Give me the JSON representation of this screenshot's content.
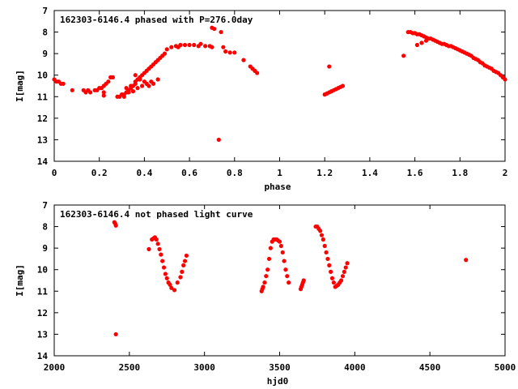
{
  "chart_data": [
    {
      "type": "scatter",
      "title": "162303-6146.4 phased with P=276.0day",
      "xlabel": "phase",
      "ylabel": "I[mag]",
      "xlim": [
        0,
        2
      ],
      "ylim": [
        14,
        7
      ],
      "y_inverted": true,
      "x_ticks": [
        "0",
        "0.2",
        "0.4",
        "0.6",
        "0.8",
        "1",
        "1.2",
        "1.4",
        "1.6",
        "1.8",
        "2"
      ],
      "x_tick_values": [
        0,
        0.2,
        0.4,
        0.6,
        0.8,
        1.0,
        1.2,
        1.4,
        1.6,
        1.8,
        2.0
      ],
      "y_ticks": [
        "7",
        "8",
        "9",
        "10",
        "11",
        "12",
        "13",
        "14"
      ],
      "y_tick_values": [
        7,
        8,
        9,
        10,
        11,
        12,
        13,
        14
      ],
      "grid": false,
      "marker_color": "#ff0000",
      "series": [
        {
          "x": [
            0.0,
            0.01,
            0.02,
            0.03,
            0.04,
            0.08,
            0.13,
            0.14,
            0.15,
            0.16,
            0.18,
            0.19,
            0.2,
            0.21,
            0.22,
            0.22,
            0.23,
            0.24,
            0.25,
            0.26,
            0.28,
            0.29,
            0.3,
            0.31,
            0.32,
            0.33,
            0.34,
            0.35,
            0.36,
            0.37,
            0.38,
            0.39,
            0.4,
            0.41,
            0.42,
            0.43,
            0.44,
            0.45,
            0.46,
            0.47,
            0.48,
            0.49,
            0.5,
            0.52,
            0.54,
            0.56,
            0.58,
            0.6,
            0.62,
            0.64,
            0.65,
            0.67,
            0.69,
            0.7,
            0.71,
            0.74,
            0.75,
            0.76,
            0.78,
            0.8,
            0.84,
            0.87,
            0.88,
            0.89,
            0.9,
            1.2,
            1.21,
            1.22,
            1.23,
            1.24,
            1.25,
            1.26,
            1.27,
            1.28,
            1.55,
            1.57,
            1.58,
            1.59,
            1.6,
            1.61,
            1.62,
            1.63,
            1.64,
            1.65,
            1.66,
            1.67,
            1.68,
            1.69,
            1.7,
            1.71,
            1.72,
            1.73,
            1.74,
            1.75,
            1.76,
            1.77,
            1.78,
            1.79,
            1.8,
            1.81,
            1.82,
            1.83,
            1.84,
            1.85,
            1.86,
            1.87,
            1.88,
            1.89,
            1.9,
            1.91,
            1.92,
            1.93,
            1.94,
            1.95,
            1.96,
            1.97,
            1.98,
            1.99,
            2.0,
            0.36,
            0.38,
            0.4,
            0.42,
            0.32,
            0.34,
            0.36,
            0.22,
            0.44,
            0.46,
            0.3,
            0.31,
            0.33,
            0.35,
            0.37,
            0.39,
            0.41,
            0.43,
            1.61,
            1.63,
            1.65
          ],
          "y": [
            10.2,
            10.3,
            10.3,
            10.4,
            10.4,
            10.7,
            10.7,
            10.8,
            10.7,
            10.8,
            10.7,
            10.7,
            10.6,
            10.6,
            10.5,
            10.8,
            10.4,
            10.3,
            10.1,
            10.1,
            11.0,
            11.0,
            10.9,
            10.9,
            10.8,
            10.7,
            10.6,
            10.5,
            10.3,
            10.2,
            10.1,
            10.0,
            9.9,
            9.8,
            9.7,
            9.6,
            9.5,
            9.4,
            9.3,
            9.2,
            9.1,
            9.0,
            8.8,
            8.7,
            8.65,
            8.6,
            8.6,
            8.6,
            8.6,
            8.65,
            8.55,
            8.65,
            8.65,
            8.7,
            7.85,
            8.0,
            8.7,
            8.9,
            8.95,
            8.95,
            9.3,
            9.6,
            9.7,
            9.8,
            9.9,
            10.9,
            10.85,
            10.8,
            10.75,
            10.7,
            10.65,
            10.6,
            10.55,
            10.5,
            9.1,
            8.0,
            8.0,
            8.05,
            8.05,
            8.1,
            8.1,
            8.15,
            8.2,
            8.25,
            8.3,
            8.3,
            8.35,
            8.4,
            8.45,
            8.5,
            8.55,
            8.55,
            8.6,
            8.65,
            8.65,
            8.7,
            8.75,
            8.8,
            8.85,
            8.9,
            8.95,
            9.0,
            9.05,
            9.1,
            9.2,
            9.25,
            9.3,
            9.4,
            9.45,
            9.55,
            9.6,
            9.65,
            9.7,
            9.8,
            9.85,
            9.9,
            10.0,
            10.1,
            10.2,
            10.0,
            10.2,
            10.3,
            10.5,
            10.6,
            10.5,
            10.4,
            10.95,
            10.4,
            10.2,
            10.9,
            11.0,
            10.8,
            10.75,
            10.6,
            10.5,
            10.4,
            10.3,
            8.6,
            8.5,
            8.4
          ],
          "outliers_x": [
            0.73,
            1.22,
            0.55,
            0.7
          ],
          "outliers_y": [
            13.0,
            9.6,
            8.7,
            7.8
          ]
        }
      ]
    },
    {
      "type": "scatter",
      "title": "162303-6146.4 not phased light curve",
      "xlabel": "hjd0",
      "ylabel": "I[mag]",
      "xlim": [
        2000,
        5000
      ],
      "ylim": [
        14,
        7
      ],
      "y_inverted": true,
      "x_ticks": [
        "2000",
        "2500",
        "3000",
        "3500",
        "4000",
        "4500",
        "5000"
      ],
      "x_tick_values": [
        2000,
        2500,
        3000,
        3500,
        4000,
        4500,
        5000
      ],
      "y_ticks": [
        "7",
        "8",
        "9",
        "10",
        "11",
        "12",
        "13",
        "14"
      ],
      "y_tick_values": [
        7,
        8,
        9,
        10,
        11,
        12,
        13,
        14
      ],
      "grid": false,
      "marker_color": "#ff0000",
      "series": [
        {
          "x": [
            2400,
            2405,
            2410,
            2410,
            2630,
            2650,
            2660,
            2670,
            2680,
            2690,
            2700,
            2710,
            2720,
            2730,
            2740,
            2750,
            2760,
            2770,
            2780,
            2800,
            2820,
            2840,
            2850,
            2860,
            2870,
            2880,
            3380,
            3385,
            3390,
            3400,
            3410,
            3420,
            3430,
            3440,
            3450,
            3460,
            3470,
            3480,
            3490,
            3500,
            3510,
            3520,
            3530,
            3540,
            3550,
            3560,
            3640,
            3645,
            3650,
            3655,
            3660,
            3740,
            3750,
            3760,
            3770,
            3780,
            3790,
            3800,
            3810,
            3820,
            3830,
            3840,
            3850,
            3860,
            3870,
            3880,
            3890,
            3900,
            3910,
            3920,
            3930,
            3940,
            3950,
            4740
          ],
          "y": [
            7.8,
            7.85,
            7.95,
            13.0,
            9.05,
            8.6,
            8.55,
            8.5,
            8.6,
            8.8,
            9.05,
            9.3,
            9.6,
            9.9,
            10.2,
            10.4,
            10.6,
            10.7,
            10.85,
            10.95,
            10.6,
            10.35,
            10.1,
            9.8,
            9.6,
            9.35,
            11.0,
            10.9,
            10.8,
            10.6,
            10.3,
            10.0,
            9.5,
            9.0,
            8.7,
            8.6,
            8.6,
            8.6,
            8.65,
            8.7,
            8.9,
            9.2,
            9.6,
            10.0,
            10.3,
            10.6,
            10.9,
            10.8,
            10.7,
            10.6,
            10.5,
            8.0,
            8.0,
            8.1,
            8.2,
            8.4,
            8.6,
            8.9,
            9.2,
            9.5,
            9.8,
            10.1,
            10.4,
            10.6,
            10.8,
            10.75,
            10.7,
            10.6,
            10.5,
            10.3,
            10.1,
            9.9,
            9.7,
            9.55
          ]
        }
      ]
    }
  ]
}
